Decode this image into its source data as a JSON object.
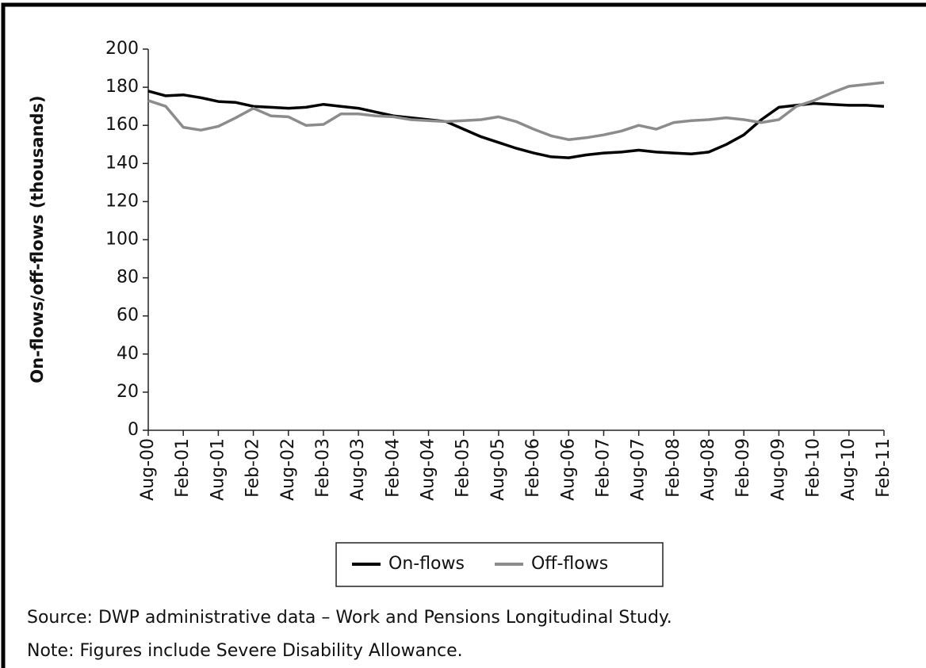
{
  "chart_data": {
    "type": "line",
    "y_label": "On-flows/off-flows (thousands)",
    "categories": [
      "Aug-00",
      null,
      "Feb-01",
      null,
      "Aug-01",
      null,
      "Feb-02",
      null,
      "Aug-02",
      null,
      "Feb-03",
      null,
      "Aug-03",
      null,
      "Feb-04",
      null,
      "Aug-04",
      null,
      "Feb-05",
      null,
      "Aug-05",
      null,
      "Feb-06",
      null,
      "Aug-06",
      null,
      "Feb-07",
      null,
      "Aug-07",
      null,
      "Feb-08",
      null,
      "Aug-08",
      null,
      "Feb-09",
      null,
      "Aug-09",
      null,
      "Feb-10",
      null,
      "Aug-10",
      null,
      "Feb-11"
    ],
    "series": [
      {
        "name": "On-flows",
        "color": "#000000",
        "values": [
          178,
          175.5,
          176,
          174.5,
          172.5,
          172,
          170,
          169.5,
          169,
          169.5,
          171,
          170,
          169,
          167,
          165,
          164,
          163,
          162,
          158,
          154,
          151,
          148,
          145.5,
          143.5,
          143,
          144.5,
          145.5,
          146,
          147,
          146,
          145.5,
          145,
          146,
          150,
          155,
          163,
          169.5,
          170.5,
          171.5,
          171,
          170.5,
          170.5,
          170
        ]
      },
      {
        "name": "Off-flows",
        "color": "#8c8c8c",
        "values": [
          173,
          170,
          159,
          157.5,
          159.5,
          164,
          169,
          165,
          164.5,
          160,
          160.5,
          166,
          166,
          165,
          164.5,
          163,
          162.5,
          162,
          162.5,
          163,
          164.5,
          162,
          158,
          154.5,
          152.5,
          153.5,
          155,
          157,
          160,
          158,
          161.5,
          162.5,
          163,
          164,
          163,
          161.5,
          163,
          170,
          173,
          177,
          180.5,
          181.5,
          182.5
        ]
      }
    ],
    "ylim": [
      0,
      200
    ],
    "yticks": [
      0,
      20,
      40,
      60,
      80,
      100,
      120,
      140,
      160,
      180,
      200
    ],
    "legend": "bottom",
    "notes": [
      "Source: DWP administrative data – Work and Pensions Longitudinal Study.",
      "Note: Figures include Severe Disability Allowance."
    ]
  }
}
